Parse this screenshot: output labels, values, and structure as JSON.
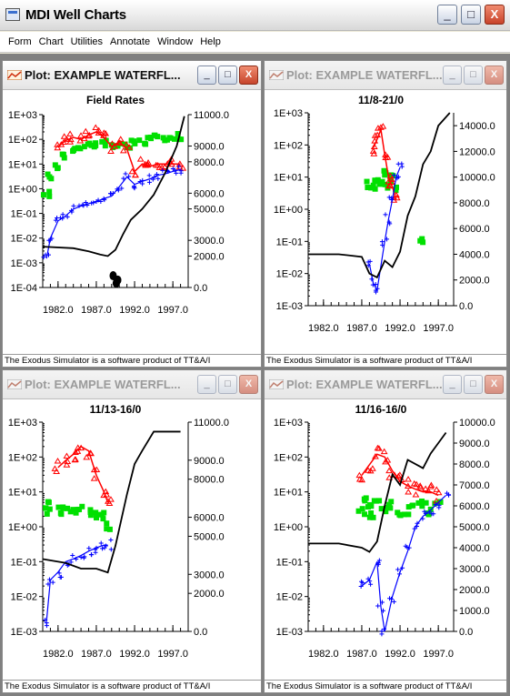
{
  "app": {
    "title": "MDI Well Charts",
    "icon": "window-app-icon",
    "controls": {
      "minimize": "_",
      "maximize": "□",
      "close": "X"
    }
  },
  "menu": [
    "Form",
    "Chart",
    "Utilities",
    "Annotate",
    "Window",
    "Help"
  ],
  "footer_text": "The Exodus Simulator is a software product of TT&A/I",
  "colors": {
    "oil": "#00e000",
    "water": "#0000ff",
    "gas": "#ff0000",
    "pressure": "#000000"
  },
  "windows": [
    {
      "title": "Plot: EXAMPLE WATERFL...",
      "active": true,
      "chart_data": {
        "type": "scatter",
        "title": "Field Rates",
        "x_ticks": [
          "1982.0",
          "1987.0",
          "1992.0",
          "1997.0"
        ],
        "xlim": [
          1980,
          1999
        ],
        "y_left_ticks": [
          "1E+03",
          "1E+02",
          "1E+01",
          "1E+00",
          "1E-01",
          "1E-02",
          "1E-03",
          "1E-04"
        ],
        "y_left_log_range": [
          -4,
          3
        ],
        "y_right_ticks": [
          "11000.0",
          "9000.0",
          "8000.0",
          "6000.0",
          "5000.0",
          "3000.0",
          "2000.0",
          "0.0"
        ],
        "y_right_range": [
          0,
          11000
        ],
        "pressure_line": [
          [
            1980,
            2600
          ],
          [
            1984,
            2500
          ],
          [
            1986,
            2300
          ],
          [
            1987.5,
            2100
          ],
          [
            1988.5,
            2000
          ],
          [
            1989.5,
            2400
          ],
          [
            1990.5,
            3400
          ],
          [
            1991.5,
            4300
          ],
          [
            1993,
            5000
          ],
          [
            1994.5,
            5900
          ],
          [
            1996,
            7300
          ],
          [
            1997.5,
            9000
          ],
          [
            1998.5,
            10900
          ]
        ],
        "oil_points": [
          [
            1980.5,
            0.6
          ],
          [
            1981,
            3
          ],
          [
            1982,
            8
          ],
          [
            1983,
            20
          ],
          [
            1984,
            40
          ],
          [
            1985,
            55
          ],
          [
            1986,
            65
          ],
          [
            1987,
            60
          ],
          [
            1988,
            70
          ],
          [
            1989,
            45
          ],
          [
            1990,
            60
          ],
          [
            1991,
            50
          ],
          [
            1992,
            70
          ],
          [
            1993,
            80
          ],
          [
            1994,
            100
          ],
          [
            1995,
            110
          ],
          [
            1996,
            120
          ],
          [
            1997,
            130
          ],
          [
            1998,
            130
          ]
        ],
        "water_points": [
          [
            1980.5,
            0.0015
          ],
          [
            1981,
            0.01
          ],
          [
            1982,
            0.05
          ],
          [
            1983,
            0.08
          ],
          [
            1984,
            0.15
          ],
          [
            1985,
            0.2
          ],
          [
            1986,
            0.25
          ],
          [
            1987,
            0.3
          ],
          [
            1988,
            0.4
          ],
          [
            1989,
            0.5
          ],
          [
            1990,
            1.2
          ],
          [
            1991,
            3
          ],
          [
            1992,
            1.5
          ],
          [
            1993,
            2
          ],
          [
            1994,
            2.5
          ],
          [
            1995,
            3.5
          ],
          [
            1996,
            4
          ],
          [
            1997,
            5
          ],
          [
            1998,
            6
          ]
        ],
        "gas_points": [
          [
            1982,
            50
          ],
          [
            1983,
            90
          ],
          [
            1984,
            120
          ],
          [
            1985,
            100
          ],
          [
            1986,
            150
          ],
          [
            1987,
            200
          ],
          [
            1988,
            120
          ],
          [
            1989,
            50
          ],
          [
            1990,
            80
          ],
          [
            1991,
            40
          ],
          [
            1992,
            5
          ],
          [
            1993,
            10
          ],
          [
            1994,
            8
          ],
          [
            1995,
            10
          ],
          [
            1996,
            10
          ],
          [
            1997,
            10
          ],
          [
            1998,
            10
          ]
        ],
        "injection_points": [
          [
            1989.2,
            0.0003
          ],
          [
            1989.6,
            0.00015
          ],
          [
            1989.8,
            0.0002
          ]
        ]
      }
    },
    {
      "title": "Plot: EXAMPLE WATERFL...",
      "active": false,
      "chart_data": {
        "type": "scatter",
        "title": "11/8-21/0",
        "x_ticks": [
          "1982.0",
          "1987.0",
          "1992.0",
          "1997.0"
        ],
        "xlim": [
          1980,
          1999
        ],
        "y_left_ticks": [
          "1E+03",
          "1E+02",
          "1E+01",
          "1E+00",
          "1E-01",
          "1E-02",
          "1E-03"
        ],
        "y_left_log_range": [
          -3,
          3
        ],
        "y_right_ticks": [
          "14000.0",
          "12000.0",
          "10000.0",
          "8000.0",
          "6000.0",
          "4000.0",
          "2000.0",
          "0.0"
        ],
        "y_right_range": [
          0,
          15000
        ],
        "pressure_line": [
          [
            1980,
            4000
          ],
          [
            1984,
            4000
          ],
          [
            1987,
            3800
          ],
          [
            1988,
            2500
          ],
          [
            1989,
            2200
          ],
          [
            1990,
            3500
          ],
          [
            1991,
            3000
          ],
          [
            1992,
            4200
          ],
          [
            1993,
            7000
          ],
          [
            1994,
            8500
          ],
          [
            1995,
            11000
          ],
          [
            1996,
            12000
          ],
          [
            1997,
            14000
          ],
          [
            1998.5,
            15000
          ]
        ],
        "oil_points": [
          [
            1988,
            6
          ],
          [
            1988.5,
            5
          ],
          [
            1989,
            7
          ],
          [
            1989.5,
            8
          ],
          [
            1990,
            12
          ],
          [
            1990.5,
            6
          ],
          [
            1991,
            9
          ],
          [
            1991.5,
            5
          ],
          [
            1995,
            0.1
          ]
        ],
        "water_points": [
          [
            1988,
            0.02
          ],
          [
            1988.5,
            0.005
          ],
          [
            1989,
            0.003
          ],
          [
            1990,
            0.1
          ],
          [
            1990.5,
            0.5
          ],
          [
            1991,
            2
          ],
          [
            1991.5,
            10
          ],
          [
            1992,
            20
          ]
        ],
        "gas_points": [
          [
            1988.5,
            80
          ],
          [
            1989,
            150
          ],
          [
            1989.5,
            300
          ],
          [
            1990,
            50
          ],
          [
            1990.5,
            10
          ],
          [
            1991,
            5
          ],
          [
            1991.5,
            2
          ]
        ],
        "injection_points": []
      }
    },
    {
      "title": "Plot: EXAMPLE WATERFL...",
      "active": false,
      "chart_data": {
        "type": "scatter",
        "title": "11/13-16/0",
        "x_ticks": [
          "1982.0",
          "1987.0",
          "1992.0",
          "1997.0"
        ],
        "xlim": [
          1980,
          1999
        ],
        "y_left_ticks": [
          "1E+03",
          "1E+02",
          "1E+01",
          "1E+00",
          "1E-01",
          "1E-02",
          "1E-03"
        ],
        "y_left_log_range": [
          -3,
          3
        ],
        "y_right_ticks": [
          "11000.0",
          "9000.0",
          "8000.0",
          "6000.0",
          "5000.0",
          "3000.0",
          "2000.0",
          "0.0"
        ],
        "y_right_range": [
          0,
          11000
        ],
        "pressure_line": [
          [
            1980,
            3800
          ],
          [
            1983,
            3600
          ],
          [
            1985,
            3300
          ],
          [
            1987,
            3300
          ],
          [
            1988.5,
            3100
          ],
          [
            1989.5,
            4500
          ],
          [
            1991,
            7200
          ],
          [
            1992,
            8800
          ],
          [
            1993,
            9500
          ],
          [
            1994.5,
            10500
          ],
          [
            1996,
            10500
          ],
          [
            1998,
            10500
          ]
        ],
        "oil_points": [
          [
            1980.5,
            3
          ],
          [
            1981,
            4
          ],
          [
            1982,
            3
          ],
          [
            1983,
            4
          ],
          [
            1984,
            3
          ],
          [
            1985,
            3
          ],
          [
            1986,
            2.5
          ],
          [
            1987,
            2
          ],
          [
            1988,
            2
          ],
          [
            1988.5,
            1
          ]
        ],
        "water_points": [
          [
            1980.5,
            0.002
          ],
          [
            1981,
            0.03
          ],
          [
            1982,
            0.05
          ],
          [
            1983,
            0.1
          ],
          [
            1984,
            0.12
          ],
          [
            1985,
            0.15
          ],
          [
            1986,
            0.2
          ],
          [
            1987,
            0.25
          ],
          [
            1988,
            0.3
          ],
          [
            1988.5,
            0.3
          ]
        ],
        "gas_points": [
          [
            1982,
            50
          ],
          [
            1983,
            80
          ],
          [
            1984,
            120
          ],
          [
            1985,
            200
          ],
          [
            1986,
            150
          ],
          [
            1987,
            30
          ],
          [
            1988,
            10
          ],
          [
            1988.5,
            5
          ]
        ],
        "injection_points": []
      }
    },
    {
      "title": "Plot: EXAMPLE WATERFL...",
      "active": false,
      "chart_data": {
        "type": "scatter",
        "title": "11/16-16/0",
        "x_ticks": [
          "1982.0",
          "1987.0",
          "1992.0",
          "1997.0"
        ],
        "xlim": [
          1980,
          1999
        ],
        "y_left_ticks": [
          "1E+03",
          "1E+02",
          "1E+01",
          "1E+00",
          "1E-01",
          "1E-02",
          "1E-03"
        ],
        "y_left_log_range": [
          -3,
          3
        ],
        "y_right_ticks": [
          "10000.0",
          "9000.0",
          "8000.0",
          "7000.0",
          "6000.0",
          "5000.0",
          "4000.0",
          "3000.0",
          "2000.0",
          "1000.0",
          "0.0"
        ],
        "y_right_range": [
          0,
          10000
        ],
        "pressure_line": [
          [
            1980,
            4200
          ],
          [
            1984,
            4200
          ],
          [
            1987,
            4000
          ],
          [
            1988,
            3800
          ],
          [
            1989,
            4300
          ],
          [
            1990,
            6000
          ],
          [
            1991,
            7500
          ],
          [
            1992,
            7000
          ],
          [
            1993,
            8200
          ],
          [
            1995,
            7800
          ],
          [
            1996,
            8500
          ],
          [
            1998,
            9500
          ]
        ],
        "oil_points": [
          [
            1987,
            3
          ],
          [
            1987.5,
            6
          ],
          [
            1988,
            4
          ],
          [
            1988.5,
            2
          ],
          [
            1989,
            5
          ],
          [
            1990,
            3
          ],
          [
            1991,
            4
          ],
          [
            1992,
            2
          ],
          [
            1993,
            3
          ],
          [
            1994,
            4
          ],
          [
            1995,
            5
          ],
          [
            1996,
            3
          ],
          [
            1997,
            4
          ]
        ],
        "water_points": [
          [
            1987,
            0.02
          ],
          [
            1988,
            0.03
          ],
          [
            1989,
            0.1
          ],
          [
            1989.5,
            0.005
          ],
          [
            1990,
            0.001
          ],
          [
            1991,
            0.01
          ],
          [
            1992,
            0.05
          ],
          [
            1993,
            0.2
          ],
          [
            1994,
            1
          ],
          [
            1995,
            2
          ],
          [
            1996,
            3
          ],
          [
            1997,
            5
          ],
          [
            1998,
            8
          ]
        ],
        "gas_points": [
          [
            1987,
            30
          ],
          [
            1988,
            60
          ],
          [
            1989,
            120
          ],
          [
            1990,
            100
          ],
          [
            1991,
            40
          ],
          [
            1992,
            20
          ],
          [
            1993,
            15
          ],
          [
            1994,
            12
          ],
          [
            1995,
            10
          ],
          [
            1996,
            10
          ],
          [
            1997,
            8
          ]
        ],
        "injection_points": []
      }
    }
  ]
}
